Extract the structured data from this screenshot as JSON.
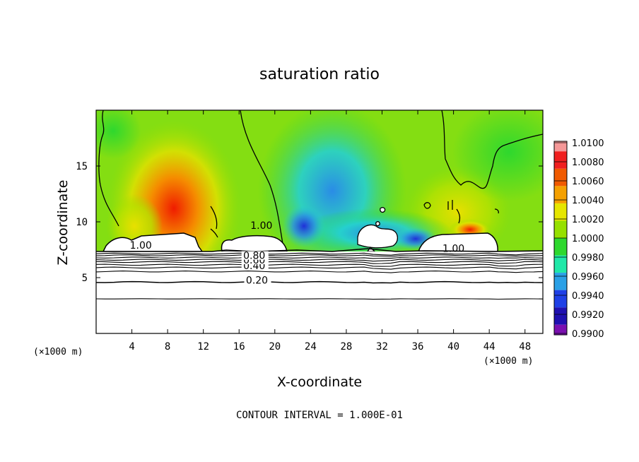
{
  "chart_data": {
    "type": "heatmap",
    "title": "saturation ratio",
    "xlabel": "X-coordinate",
    "ylabel": "Z-coordinate",
    "x_unit_left": "(×1000 m)",
    "x_unit_right": "(×1000 m)",
    "xlim": [
      0,
      50
    ],
    "ylim": [
      0,
      20
    ],
    "x_ticks": [
      "4",
      "8",
      "12",
      "16",
      "20",
      "24",
      "28",
      "32",
      "36",
      "40",
      "44",
      "48"
    ],
    "x_tick_values": [
      4,
      8,
      12,
      16,
      20,
      24,
      28,
      32,
      36,
      40,
      44,
      48
    ],
    "y_ticks": [
      "5",
      "10",
      "15"
    ],
    "y_tick_values": [
      5,
      10,
      15
    ],
    "colorbar": {
      "labels": [
        "1.0100",
        "1.0080",
        "1.0060",
        "1.0040",
        "1.0020",
        "1.0000",
        "0.9980",
        "0.9960",
        "0.9940",
        "0.9920",
        "0.9900"
      ],
      "min": 0.99,
      "max": 1.01,
      "colors": [
        "#f59898",
        "#f02020",
        "#f05a00",
        "#f5a000",
        "#e6e600",
        "#96e000",
        "#2ed82e",
        "#20e8a8",
        "#2aa0e6",
        "#1f40e6",
        "#1f10b0",
        "#7a10b0"
      ]
    },
    "contour_lines": [
      {
        "level": 0.2,
        "z": 4.6,
        "label": "0.20",
        "label_x": 18
      },
      {
        "level": 0.4,
        "z": 5.9,
        "label": "0.40",
        "label_x": 17.7
      },
      {
        "level": 0.6,
        "z": 6.4,
        "label": "0.60",
        "label_x": 17.7
      },
      {
        "level": 0.8,
        "z": 6.8,
        "label": "0.80",
        "label_x": 17.7
      },
      {
        "level": 1.0,
        "label": "1.00",
        "label_x": 18.5,
        "label_z": 9.5
      }
    ],
    "surface_labels": [
      {
        "text": "1.00",
        "x": 5.0,
        "z": 7.6
      },
      {
        "text": "1.00",
        "x": 40.0,
        "z": 7.3
      }
    ],
    "contour_interval_label": "CONTOUR INTERVAL = 1.000E-01"
  }
}
